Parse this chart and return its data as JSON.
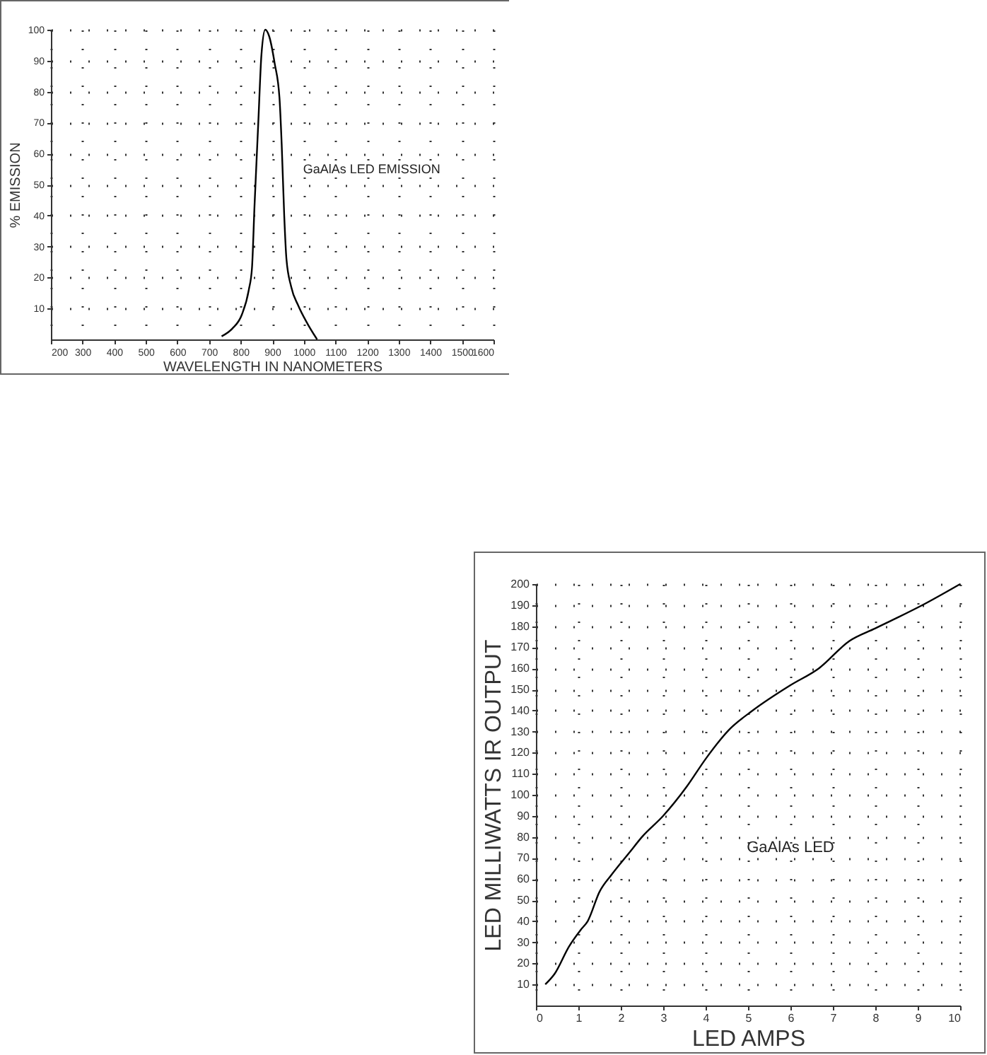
{
  "chart_data": [
    {
      "type": "line",
      "xlabel": "WAVELENGTH IN NANOMETERS",
      "ylabel": "% EMISSION",
      "annotations": [
        "GaAlAs LED EMISSION"
      ],
      "xlim": [
        200,
        1600
      ],
      "xticks": [
        200,
        300,
        400,
        500,
        600,
        700,
        800,
        900,
        1000,
        1100,
        1200,
        1300,
        1400,
        1500,
        1600
      ],
      "ylim": [
        0,
        100
      ],
      "yticks": [
        10,
        20,
        30,
        40,
        50,
        60,
        70,
        80,
        90,
        100
      ],
      "grid": true,
      "series": [
        {
          "color": "#000000",
          "x": [
            740,
            774,
            804,
            826,
            836,
            844,
            856,
            866,
            878,
            890,
            908,
            923,
            930,
            938,
            945,
            960,
            982,
            1012,
            1042
          ],
          "values": [
            1,
            3.5,
            8,
            16,
            23,
            43,
            70,
            92,
            100,
            98,
            89,
            78,
            63,
            40,
            26,
            17,
            11,
            5,
            0
          ]
        }
      ]
    },
    {
      "type": "line",
      "xlabel": "LED AMPS",
      "ylabel": "LED MILLIWATTS IR OUTPUT",
      "annotations": [
        "GaAlAs LED"
      ],
      "xlim": [
        0,
        10
      ],
      "xticks": [
        0,
        1,
        2,
        3,
        4,
        5,
        6,
        7,
        8,
        9,
        10
      ],
      "ylim": [
        0,
        200
      ],
      "yticks": [
        10,
        20,
        30,
        40,
        50,
        60,
        70,
        80,
        90,
        100,
        110,
        120,
        130,
        140,
        150,
        160,
        170,
        180,
        190,
        200
      ],
      "grid": true,
      "series": [
        {
          "color": "#000000",
          "x": [
            0.22,
            0.44,
            0.78,
            1.06,
            1.22,
            1.5,
            1.78,
            2.22,
            2.5,
            3,
            3.56,
            4,
            4.56,
            5.11,
            6,
            6.67,
            7.39,
            8,
            9.11,
            10
          ],
          "values": [
            10,
            15,
            28,
            36,
            40,
            54,
            62,
            73,
            80,
            90,
            104,
            117,
            131,
            140,
            152,
            160,
            173,
            179,
            190,
            200
          ]
        }
      ]
    }
  ]
}
